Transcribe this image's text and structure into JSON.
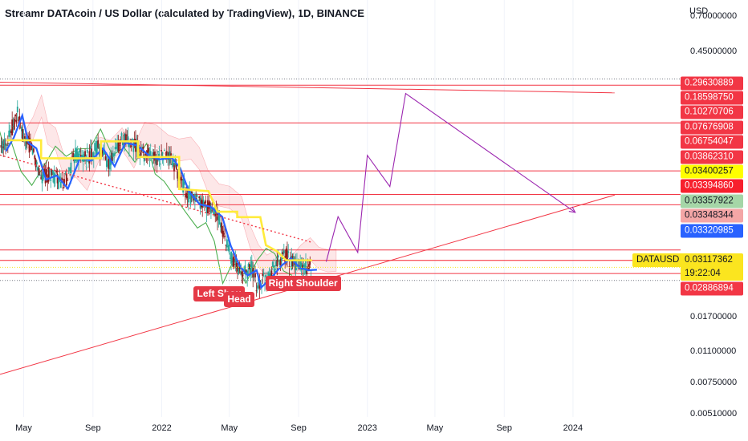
{
  "chart_data": {
    "type": "line",
    "title": "Streamr DATAcoin / US Dollar (calculated by TradingView), 1D, BINANCE",
    "currency": "USD",
    "y_scale": "log",
    "ylim": [
      0.0049,
      0.85
    ],
    "xlim": [
      "2021-03-20",
      "2024-07-10"
    ],
    "price_ticks": [
      0.7,
      0.45,
      0.017,
      0.011,
      0.0075,
      0.0051
    ],
    "time_ticks": [
      {
        "label": "May",
        "date": "2021-05-01"
      },
      {
        "label": "Sep",
        "date": "2021-09-01"
      },
      {
        "label": "2022",
        "date": "2022-01-01"
      },
      {
        "label": "May",
        "date": "2022-05-01"
      },
      {
        "label": "Sep",
        "date": "2022-09-01"
      },
      {
        "label": "2023",
        "date": "2023-01-01"
      },
      {
        "label": "May",
        "date": "2023-05-01"
      },
      {
        "label": "Sep",
        "date": "2023-09-01"
      },
      {
        "label": "2024",
        "date": "2024-01-01"
      }
    ],
    "horizontal_levels": [
      {
        "value": "0.29630889",
        "color": "#f23645",
        "text_color": "#ffffff"
      },
      {
        "value": "0.18598750",
        "color": "#f23645",
        "text_color": "#ffffff"
      },
      {
        "value": "0.10270706",
        "color": "#f23645",
        "text_color": "#ffffff"
      },
      {
        "value": "0.07676908",
        "color": "#f23645",
        "text_color": "#ffffff"
      },
      {
        "value": "0.06754047",
        "color": "#f23645",
        "text_color": "#ffffff"
      },
      {
        "value": "0.03862310",
        "color": "#f23645",
        "text_color": "#ffffff"
      },
      {
        "value": "0.03400257",
        "color": "#ffff00",
        "text_color": "#131722"
      },
      {
        "value": "0.03394860",
        "color": "#f7202d",
        "text_color": "#ffffff"
      },
      {
        "value": "0.03357922",
        "color": "#a5d6a7",
        "text_color": "#131722"
      },
      {
        "value": "0.03348344",
        "color": "#f4a6a6",
        "text_color": "#131722"
      },
      {
        "value": "0.03320985",
        "color": "#2962ff",
        "text_color": "#ffffff"
      },
      {
        "value": "0.03117362",
        "color": "#22ab94",
        "text_color": "#ffffff"
      },
      {
        "value": "0.02886894",
        "color": "#f23645",
        "text_color": "#ffffff"
      }
    ],
    "current_price": {
      "symbol": "DATAUSD",
      "value": "0.03117362",
      "countdown": "19:22:04",
      "color": "#fbe51f"
    },
    "annotations": [
      {
        "text": "Left Shou",
        "date": "2022-04-25",
        "value": 0.0225
      },
      {
        "text": "Head",
        "date": "2022-06-18",
        "value": 0.021
      },
      {
        "text": "Right Shoulder",
        "date": "2022-08-30",
        "value": 0.0256
      }
    ],
    "projection_path": [
      {
        "date": "2022-10-20",
        "value": 0.0334
      },
      {
        "date": "2022-11-10",
        "value": 0.0583
      },
      {
        "date": "2022-12-15",
        "value": 0.0375
      },
      {
        "date": "2023-01-01",
        "value": 0.1245
      },
      {
        "date": "2023-02-10",
        "value": 0.0846
      },
      {
        "date": "2023-03-10",
        "value": 0.2675
      },
      {
        "date": "2024-01-05",
        "value": 0.0615
      }
    ],
    "trendlines": [
      {
        "name": "upper-resistance",
        "points": [
          {
            "date": "2021-03-20",
            "value": 0.3076
          },
          {
            "date": "2024-03-15",
            "value": 0.2697
          }
        ],
        "style": "solid",
        "color": "#f23645"
      },
      {
        "name": "rising-support",
        "points": [
          {
            "date": "2021-03-20",
            "value": 0.0083
          },
          {
            "date": "2024-03-15",
            "value": 0.0762
          }
        ],
        "style": "solid",
        "color": "#f23645"
      },
      {
        "name": "descending-dotted",
        "points": [
          {
            "date": "2021-03-20",
            "value": 0.125
          },
          {
            "date": "2022-09-25",
            "value": 0.0424
          }
        ],
        "style": "dotted",
        "color": "#f23645"
      }
    ],
    "series": [
      {
        "name": "price",
        "kind": "candles",
        "color_up": "#26a69a",
        "color_down": "#8b1a1a",
        "points": [
          [
            "2021-03-22",
            0.135
          ],
          [
            "2021-04-05",
            0.16
          ],
          [
            "2021-04-20",
            0.21
          ],
          [
            "2021-05-01",
            0.15
          ],
          [
            "2021-05-15",
            0.14
          ],
          [
            "2021-06-01",
            0.095
          ],
          [
            "2021-06-20",
            0.1
          ],
          [
            "2021-07-10",
            0.085
          ],
          [
            "2021-08-01",
            0.125
          ],
          [
            "2021-08-20",
            0.12
          ],
          [
            "2021-09-10",
            0.14
          ],
          [
            "2021-10-01",
            0.112
          ],
          [
            "2021-10-20",
            0.15
          ],
          [
            "2021-11-10",
            0.145
          ],
          [
            "2021-12-01",
            0.128
          ],
          [
            "2021-12-20",
            0.122
          ],
          [
            "2022-01-10",
            0.125
          ],
          [
            "2022-01-25",
            0.11
          ],
          [
            "2022-02-10",
            0.082
          ],
          [
            "2022-03-01",
            0.07
          ],
          [
            "2022-03-20",
            0.068
          ],
          [
            "2022-04-10",
            0.06
          ],
          [
            "2022-04-25",
            0.042
          ],
          [
            "2022-05-10",
            0.033
          ],
          [
            "2022-05-25",
            0.029
          ],
          [
            "2022-06-10",
            0.031
          ],
          [
            "2022-06-18",
            0.025
          ],
          [
            "2022-07-05",
            0.028
          ],
          [
            "2022-07-25",
            0.033
          ],
          [
            "2022-08-10",
            0.036
          ],
          [
            "2022-08-25",
            0.032
          ],
          [
            "2022-09-10",
            0.031
          ],
          [
            "2022-09-25",
            0.0312
          ]
        ]
      }
    ]
  }
}
